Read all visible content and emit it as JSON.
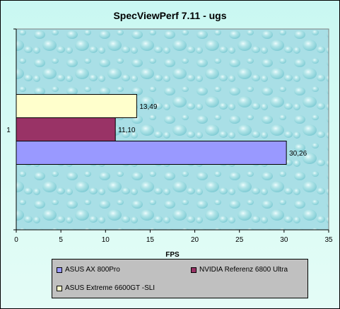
{
  "chart_data": {
    "type": "bar",
    "orientation": "horizontal",
    "title": "SpecViewPerf 7.11 - ugs",
    "xlabel": "FPS",
    "ylabel": "",
    "categories": [
      "1"
    ],
    "xlim": [
      0,
      35
    ],
    "xticks": [
      0,
      5,
      10,
      15,
      20,
      25,
      30,
      35
    ],
    "grid": false,
    "legend_placement": "bottom",
    "series": [
      {
        "name": "ASUS AX 800Pro",
        "values": [
          30.26
        ],
        "label": "30,26",
        "color": "#9999ff"
      },
      {
        "name": "NVIDIA  Referenz 6800 Ultra",
        "values": [
          11.1
        ],
        "label": "11,10",
        "color": "#993366"
      },
      {
        "name": "ASUS Extreme 6600GT -SLI",
        "values": [
          13.49
        ],
        "label": "13,49",
        "color": "#ffffcc"
      }
    ]
  },
  "legend": {
    "items": [
      "ASUS AX 800Pro",
      "NVIDIA  Referenz 6800 Ultra",
      "ASUS Extreme 6600GT -SLI"
    ]
  }
}
